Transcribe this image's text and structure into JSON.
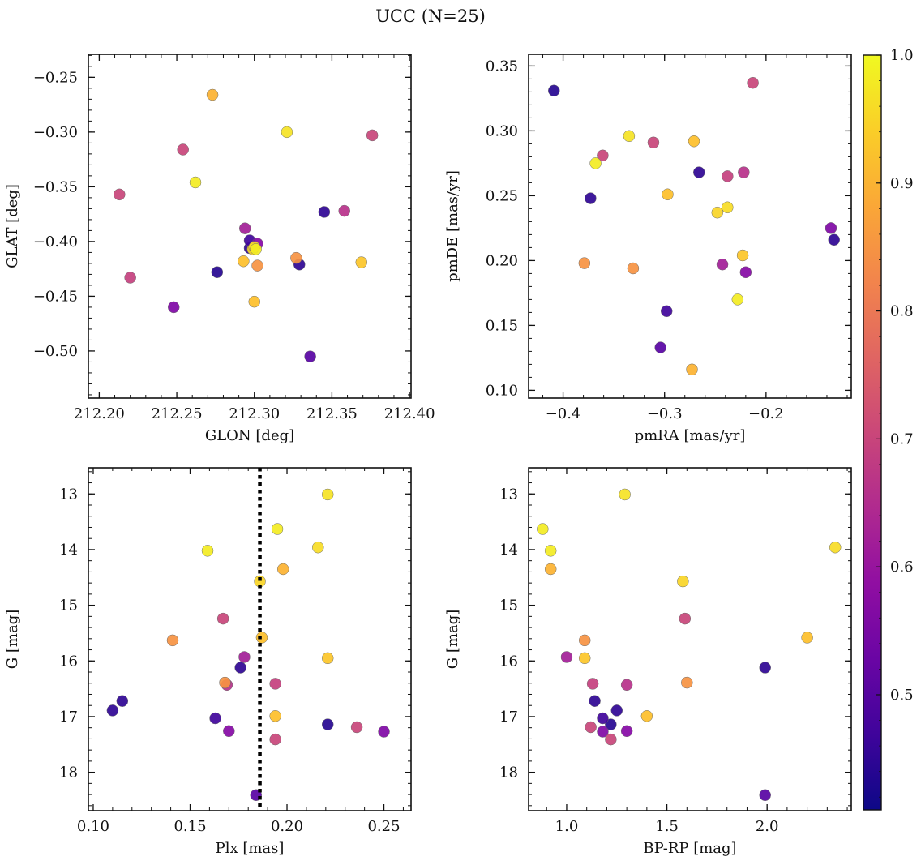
{
  "chart_data": {
    "suptitle": "UCC (N=25)",
    "colorbar": {
      "colormap": "plasma",
      "range": [
        0.41,
        1.0
      ],
      "ticks": [
        0.5,
        0.6,
        0.7,
        0.8,
        0.9,
        1.0
      ],
      "tick_labels": [
        "0.5",
        "0.6",
        "0.7",
        "0.8",
        "0.9",
        "1.0"
      ]
    },
    "stars": [
      {
        "glon": 212.273,
        "glat": -0.266,
        "pmra": -0.273,
        "pmde": 0.116,
        "plx": 0.198,
        "g": 14.35,
        "bprp": 0.92,
        "p": 0.9
      },
      {
        "glon": 212.321,
        "glat": -0.3,
        "pmra": -0.335,
        "pmde": 0.296,
        "plx": 0.221,
        "g": 13.01,
        "bprp": 1.29,
        "p": 0.97
      },
      {
        "glon": 212.376,
        "glat": -0.303,
        "pmra": -0.213,
        "pmde": 0.337,
        "plx": 0.236,
        "g": 17.19,
        "bprp": 1.12,
        "p": 0.7
      },
      {
        "glon": 212.254,
        "glat": -0.316,
        "pmra": -0.361,
        "pmde": 0.281,
        "plx": 0.167,
        "g": 15.24,
        "bprp": 1.59,
        "p": 0.7
      },
      {
        "glon": 212.262,
        "glat": -0.346,
        "pmra": -0.228,
        "pmde": 0.17,
        "plx": 0.159,
        "g": 14.02,
        "bprp": 0.92,
        "p": 0.98
      },
      {
        "glon": 212.213,
        "glat": -0.357,
        "pmra": -0.311,
        "pmde": 0.291,
        "plx": 0.194,
        "g": 17.41,
        "bprp": 1.22,
        "p": 0.7
      },
      {
        "glon": 212.345,
        "glat": -0.373,
        "pmra": -0.133,
        "pmde": 0.216,
        "plx": 0.176,
        "g": 16.12,
        "bprp": 1.99,
        "p": 0.45
      },
      {
        "glon": 212.358,
        "glat": -0.372,
        "pmra": -0.222,
        "pmde": 0.268,
        "plx": 0.169,
        "g": 16.43,
        "bprp": 1.3,
        "p": 0.66
      },
      {
        "glon": 212.294,
        "glat": -0.388,
        "pmra": -0.243,
        "pmde": 0.197,
        "plx": 0.178,
        "g": 15.93,
        "bprp": 1.0,
        "p": 0.62
      },
      {
        "glon": 212.297,
        "glat": -0.399,
        "pmra": -0.298,
        "pmde": 0.161,
        "plx": 0.163,
        "g": 17.03,
        "bprp": 1.18,
        "p": 0.47
      },
      {
        "glon": 212.302,
        "glat": -0.402,
        "pmra": -0.22,
        "pmde": 0.191,
        "plx": 0.17,
        "g": 17.26,
        "bprp": 1.3,
        "p": 0.57
      },
      {
        "glon": 212.297,
        "glat": -0.406,
        "pmra": -0.373,
        "pmde": 0.248,
        "plx": 0.115,
        "g": 16.72,
        "bprp": 1.14,
        "p": 0.45
      },
      {
        "glon": 212.299,
        "glat": -0.407,
        "pmra": -0.248,
        "pmde": 0.237,
        "plx": 0.186,
        "g": 14.57,
        "bprp": 1.58,
        "p": 0.95
      },
      {
        "glon": 212.3,
        "glat": -0.405,
        "pmra": -0.238,
        "pmde": 0.241,
        "plx": 0.216,
        "g": 13.96,
        "bprp": 2.34,
        "p": 0.96
      },
      {
        "glon": 212.301,
        "glat": -0.407,
        "pmra": -0.368,
        "pmde": 0.275,
        "plx": 0.195,
        "g": 13.63,
        "bprp": 0.88,
        "p": 0.98
      },
      {
        "glon": 212.302,
        "glat": -0.422,
        "pmra": -0.379,
        "pmde": 0.198,
        "plx": 0.141,
        "g": 15.63,
        "bprp": 1.09,
        "p": 0.85
      },
      {
        "glon": 212.327,
        "glat": -0.415,
        "pmra": -0.331,
        "pmde": 0.194,
        "plx": 0.168,
        "g": 16.39,
        "bprp": 1.6,
        "p": 0.85
      },
      {
        "glon": 212.329,
        "glat": -0.421,
        "pmra": -0.266,
        "pmde": 0.268,
        "plx": 0.11,
        "g": 16.89,
        "bprp": 1.25,
        "p": 0.45
      },
      {
        "glon": 212.369,
        "glat": -0.419,
        "pmra": -0.223,
        "pmde": 0.204,
        "plx": 0.221,
        "g": 15.95,
        "bprp": 1.09,
        "p": 0.93
      },
      {
        "glon": 212.293,
        "glat": -0.418,
        "pmra": -0.297,
        "pmde": 0.251,
        "plx": 0.187,
        "g": 15.58,
        "bprp": 2.2,
        "p": 0.92
      },
      {
        "glon": 212.22,
        "glat": -0.433,
        "pmra": -0.238,
        "pmde": 0.265,
        "plx": 0.194,
        "g": 16.41,
        "bprp": 1.13,
        "p": 0.69
      },
      {
        "glon": 212.276,
        "glat": -0.428,
        "pmra": -0.409,
        "pmde": 0.331,
        "plx": 0.221,
        "g": 17.14,
        "bprp": 1.22,
        "p": 0.44
      },
      {
        "glon": 212.3,
        "glat": -0.455,
        "pmra": -0.271,
        "pmde": 0.292,
        "plx": 0.194,
        "g": 16.99,
        "bprp": 1.4,
        "p": 0.92
      },
      {
        "glon": 212.248,
        "glat": -0.46,
        "pmra": -0.136,
        "pmde": 0.225,
        "plx": 0.25,
        "g": 17.27,
        "bprp": 1.18,
        "p": 0.56
      },
      {
        "glon": 212.336,
        "glat": -0.505,
        "pmra": -0.304,
        "pmde": 0.133,
        "plx": 0.184,
        "g": 18.41,
        "bprp": 1.99,
        "p": 0.5
      }
    ],
    "panels": [
      {
        "type": "scatter",
        "x_key": "glon",
        "y_key": "glat",
        "xlabel": "GLON [deg]",
        "ylabel": "GLAT [deg]",
        "xlim": [
          212.193,
          212.401
        ],
        "ylim": [
          -0.543,
          -0.229
        ],
        "y_inverted": false,
        "xticks": [
          212.2,
          212.25,
          212.3,
          212.35,
          212.4
        ],
        "xtick_labels": [
          "212.20",
          "212.25",
          "212.30",
          "212.35",
          "212.40"
        ],
        "yticks": [
          -0.25,
          -0.3,
          -0.35,
          -0.4,
          -0.45,
          -0.5
        ],
        "ytick_labels": [
          "−0.25",
          "−0.30",
          "−0.35",
          "−0.40",
          "−0.45",
          "−0.50"
        ]
      },
      {
        "type": "scatter",
        "x_key": "pmra",
        "y_key": "pmde",
        "xlabel": "pmRA [mas/yr]",
        "ylabel": "pmDE [mas/yr]",
        "xlim": [
          -0.434,
          -0.116
        ],
        "ylim": [
          0.094,
          0.359
        ],
        "y_inverted": false,
        "xticks": [
          -0.4,
          -0.3,
          -0.2
        ],
        "xtick_labels": [
          "−0.4",
          "−0.3",
          "−0.2"
        ],
        "yticks": [
          0.1,
          0.15,
          0.2,
          0.25,
          0.3,
          0.35
        ],
        "ytick_labels": [
          "0.10",
          "0.15",
          "0.20",
          "0.25",
          "0.30",
          "0.35"
        ]
      },
      {
        "type": "scatter",
        "x_key": "plx",
        "y_key": "g",
        "xlabel": "Plx [mas]",
        "ylabel": "G [mag]",
        "xlim": [
          0.0975,
          0.264
        ],
        "ylim": [
          12.53,
          18.69
        ],
        "y_inverted": true,
        "xticks": [
          0.1,
          0.15,
          0.2,
          0.25
        ],
        "xtick_labels": [
          "0.10",
          "0.15",
          "0.20",
          "0.25"
        ],
        "yticks": [
          13,
          14,
          15,
          16,
          17,
          18
        ],
        "ytick_labels": [
          "13",
          "14",
          "15",
          "16",
          "17",
          "18"
        ],
        "vline": {
          "x": 0.186,
          "style": "dotted"
        }
      },
      {
        "type": "scatter",
        "x_key": "bprp",
        "y_key": "g",
        "xlabel": "BP-RP [mag]",
        "ylabel": "G [mag]",
        "xlim": [
          0.81,
          2.42
        ],
        "ylim": [
          12.53,
          18.69
        ],
        "y_inverted": true,
        "xticks": [
          1.0,
          1.5,
          2.0
        ],
        "xtick_labels": [
          "1.0",
          "1.5",
          "2.0"
        ],
        "yticks": [
          13,
          14,
          15,
          16,
          17,
          18
        ],
        "ytick_labels": [
          "13",
          "14",
          "15",
          "16",
          "17",
          "18"
        ]
      }
    ]
  }
}
